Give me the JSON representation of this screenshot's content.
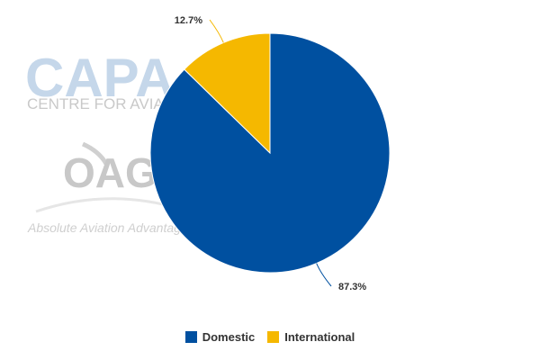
{
  "chart_data": {
    "type": "pie",
    "categories": [
      "Domestic",
      "International"
    ],
    "values": [
      87.3,
      12.7
    ],
    "data_labels": [
      "87.3%",
      "12.7%"
    ],
    "colors": [
      "#0050a0",
      "#f5b800"
    ],
    "legend_position": "bottom-center",
    "title": "",
    "subtitle": ""
  },
  "watermark": {
    "brand": "CAPA",
    "tagline": "CENTRE FOR AVIATION",
    "brand2": "OAG",
    "slogan": "Absolute Aviation Advantage"
  }
}
